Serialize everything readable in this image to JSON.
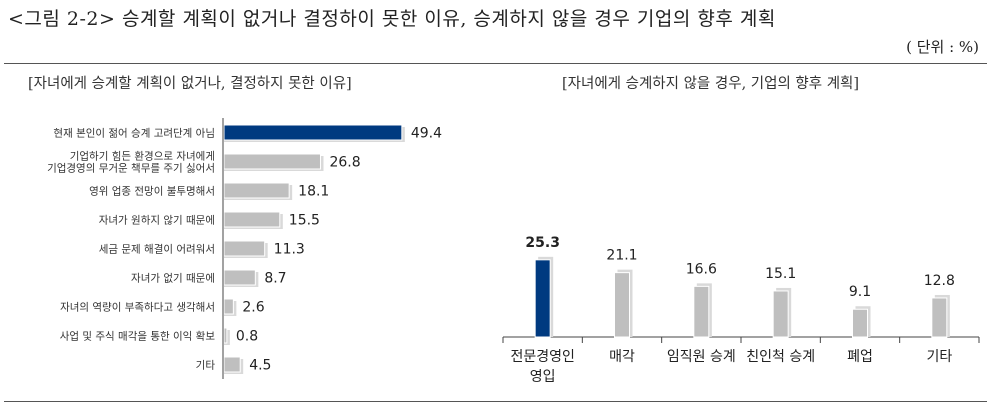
{
  "header": {
    "title": "<그림 2-2> 승계할 계획이 없거나 결정하이 못한 이유, 승계하지 않을 경우 기업의 향후 계획",
    "unit": "( 단위 : %)"
  },
  "colors": {
    "highlight": "#003a80",
    "bar": "#bfbfbf",
    "shadow": "#d9d9d9"
  },
  "chart_data": [
    {
      "type": "bar",
      "orientation": "horizontal",
      "title": "[자녀에게 승계할 계획이 없거나, 결정하지 못한 이유]",
      "categories": [
        [
          "현재 본인이 젊어 승계 고려단계 아님"
        ],
        [
          "기업하기 힘든 환경으로 자녀에게",
          "기업경영의 무거운 책무를 주기 싫어서"
        ],
        [
          "영위 업종 전망이 불투명해서"
        ],
        [
          "자녀가 원하지 않기 때문에"
        ],
        [
          "세금 문제 해결이 어려워서"
        ],
        [
          "자녀가 없기 때문에"
        ],
        [
          "자녀의 역량이 부족하다고 생각해서"
        ],
        [
          "사업 및 주식 매각을 통한 이익 확보"
        ],
        [
          "기타"
        ]
      ],
      "values": [
        49.4,
        26.8,
        18.1,
        15.5,
        11.3,
        8.7,
        2.6,
        0.8,
        4.5
      ],
      "value_labels": [
        "49.4",
        "26.8",
        "18.1",
        "15.5",
        "11.3",
        "8.7",
        "2.6",
        "0.8",
        "4.5"
      ],
      "highlight_index": 0
    },
    {
      "type": "bar",
      "orientation": "vertical",
      "title": "[자녀에게 승계하지 않을 경우, 기업의 향후 계획]",
      "categories": [
        [
          "전문경영인",
          "영입"
        ],
        [
          "매각"
        ],
        [
          "임직원 승계"
        ],
        [
          "친인척 승계"
        ],
        [
          "폐업"
        ],
        [
          "기타"
        ]
      ],
      "values": [
        25.3,
        21.1,
        16.6,
        15.1,
        9.1,
        12.8
      ],
      "value_labels": [
        "25.3",
        "21.1",
        "16.6",
        "15.1",
        "9.1",
        "12.8"
      ],
      "highlight_index": 0
    }
  ]
}
